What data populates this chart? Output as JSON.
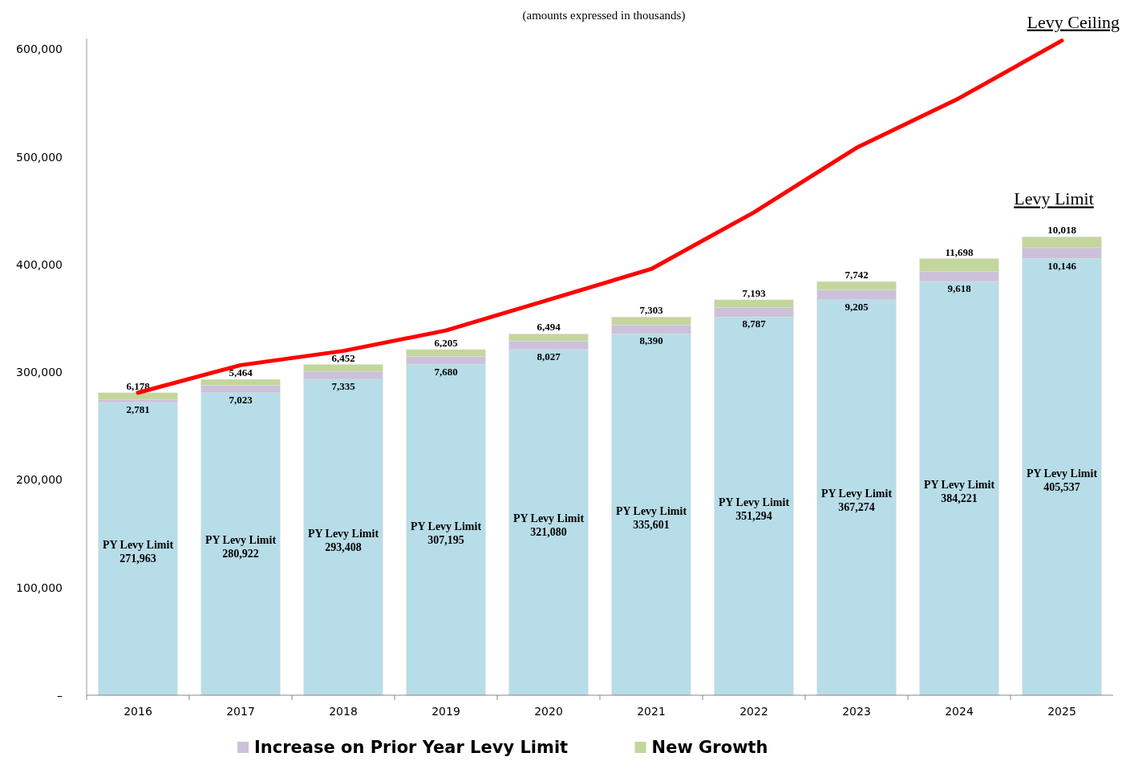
{
  "chart_data": {
    "type": "bar",
    "subtitle": "(amounts expressed in thousands)",
    "stacked": true,
    "categories": [
      "2016",
      "2017",
      "2018",
      "2019",
      "2020",
      "2021",
      "2022",
      "2023",
      "2024",
      "2025"
    ],
    "series": [
      {
        "name": "PY Levy Limit",
        "color": "#b7dde8",
        "values": [
          271963,
          280922,
          293408,
          307195,
          321080,
          335601,
          351294,
          367274,
          384221,
          405537
        ],
        "value_labels": [
          "271,963",
          "280,922",
          "293,408",
          "307,195",
          "321,080",
          "335,601",
          "351,294",
          "367,274",
          "384,221",
          "405,537"
        ]
      },
      {
        "name": "Increase on Prior Year Levy Limit",
        "color": "#ccc1da",
        "values": [
          2781,
          7023,
          7335,
          7680,
          8027,
          8390,
          8787,
          9205,
          9618,
          10146
        ],
        "value_labels": [
          "2,781",
          "7,023",
          "7,335",
          "7,680",
          "8,027",
          "8,390",
          "8,787",
          "9,205",
          "9,618",
          "10,146"
        ]
      },
      {
        "name": "New Growth",
        "color": "#c3d69b",
        "values": [
          6178,
          5464,
          6452,
          6205,
          6494,
          7303,
          7193,
          7742,
          11698,
          10018
        ],
        "value_labels": [
          "6,178",
          "5,464",
          "6,452",
          "6,205",
          "6,494",
          "7,303",
          "7,193",
          "7,742",
          "11,698",
          "10,018"
        ]
      },
      {
        "name": "Levy Ceiling",
        "type": "line",
        "color": "#ff0000",
        "values": [
          281000,
          306600,
          319800,
          338800,
          367300,
          395900,
          448500,
          508500,
          554600,
          608000
        ]
      }
    ],
    "annotations": [
      "Levy Limit"
    ],
    "ylim": [
      0,
      610000
    ],
    "yticks": [
      {
        "value": 0,
        "label": "–"
      },
      {
        "value": 100000,
        "label": "100,000"
      },
      {
        "value": 200000,
        "label": "200,000"
      },
      {
        "value": 300000,
        "label": "300,000"
      },
      {
        "value": 400000,
        "label": "400,000"
      },
      {
        "value": 500000,
        "label": "500,000"
      },
      {
        "value": 600000,
        "label": "600,000"
      }
    ],
    "grid": false,
    "legend": "bottom",
    "marker": "none",
    "line_style": "solid"
  }
}
